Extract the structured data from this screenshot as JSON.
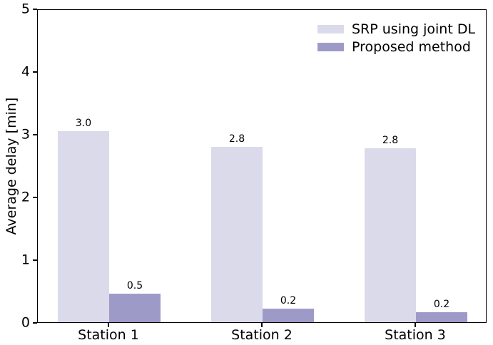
{
  "figure": {
    "ylabel": "Average delay [min]"
  },
  "chart_data": {
    "type": "bar",
    "title": "",
    "xlabel": "",
    "ylabel": "Average delay [min]",
    "categories": [
      "Station 1",
      "Station 2",
      "Station 3"
    ],
    "series": [
      {
        "name": "SRP using joint DL",
        "color": "#dadaeb",
        "values": [
          3.05,
          2.8,
          2.77
        ],
        "bar_labels": [
          "3.0",
          "2.8",
          "2.8"
        ]
      },
      {
        "name": "Proposed method",
        "color": "#9e9ac8",
        "values": [
          0.45,
          0.22,
          0.16
        ],
        "bar_labels": [
          "0.5",
          "0.2",
          "0.2"
        ]
      }
    ],
    "ylim": [
      0,
      5
    ],
    "yticks": [
      0,
      1,
      2,
      3,
      4,
      5
    ],
    "grid": false,
    "legend_position": "upper right",
    "bar_value_labels": true
  }
}
